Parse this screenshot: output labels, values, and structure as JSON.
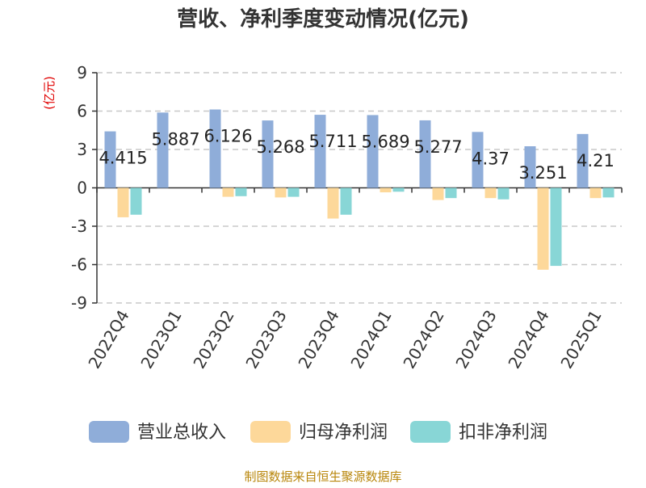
{
  "chart_data": {
    "type": "bar",
    "title": "营收、净利季度变动情况(亿元)",
    "unit_label": "(亿元)",
    "source": "制图数据来自恒生聚源数据库",
    "categories": [
      "2022Q4",
      "2023Q1",
      "2023Q2",
      "2023Q3",
      "2023Q4",
      "2024Q1",
      "2024Q2",
      "2024Q3",
      "2024Q4",
      "2025Q1"
    ],
    "ylim": [
      -9,
      9
    ],
    "yticks": [
      -9,
      -6,
      -3,
      0,
      3,
      6,
      9
    ],
    "grid": true,
    "legend_position": "bottom",
    "series": [
      {
        "name": "营业总收入",
        "color": "#8fadd9",
        "values": [
          4.415,
          5.887,
          6.126,
          5.268,
          5.711,
          5.689,
          5.277,
          4.37,
          3.251,
          4.21
        ],
        "labels": [
          "4.415",
          "5.887",
          "6.126",
          "5.268",
          "5.711",
          "5.689",
          "5.277",
          "4.37",
          "3.251",
          "4.21"
        ]
      },
      {
        "name": "归母净利润",
        "color": "#fdd89a",
        "values": [
          -2.3,
          0,
          -0.7,
          -0.75,
          -2.4,
          -0.35,
          -0.95,
          -0.8,
          -6.4,
          -0.8
        ]
      },
      {
        "name": "扣非净利润",
        "color": "#88d6d6",
        "values": [
          -2.1,
          0,
          -0.65,
          -0.7,
          -2.1,
          -0.3,
          -0.8,
          -0.9,
          -6.1,
          -0.75
        ]
      }
    ]
  }
}
